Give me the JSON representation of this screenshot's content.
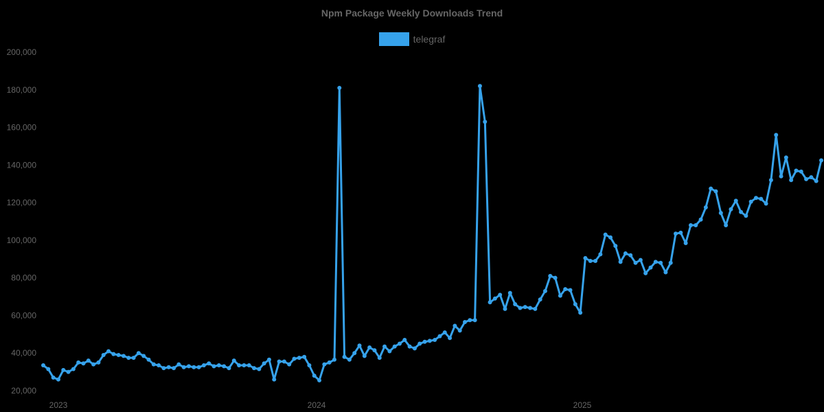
{
  "chart_data": {
    "type": "line",
    "title": "Npm Package Weekly Downloads Trend",
    "xlabel": "",
    "ylabel": "",
    "ylim": [
      20000,
      200000
    ],
    "grid": false,
    "legend_position": "top",
    "y_ticks": [
      "20,000",
      "40,000",
      "60,000",
      "80,000",
      "100,000",
      "120,000",
      "140,000",
      "160,000",
      "180,000",
      "200,000"
    ],
    "x_tick_labels": [
      "2023",
      "2024",
      "2025"
    ],
    "series": [
      {
        "name": "telegraf",
        "color": "#36a2eb",
        "values": [
          33500,
          31500,
          27000,
          26000,
          31000,
          30000,
          31500,
          35000,
          34500,
          36000,
          34000,
          35000,
          39000,
          41000,
          39500,
          39000,
          38500,
          37500,
          37500,
          40000,
          38500,
          36500,
          34000,
          33500,
          32000,
          32500,
          32000,
          34000,
          32500,
          33000,
          32500,
          32500,
          33500,
          34500,
          33000,
          33500,
          33000,
          32000,
          36000,
          33500,
          33500,
          33500,
          32000,
          31500,
          34500,
          36500,
          26000,
          35500,
          35500,
          34000,
          37000,
          37500,
          38000,
          33500,
          28000,
          25500,
          34000,
          35000,
          36500,
          181000,
          38000,
          36500,
          40000,
          44000,
          38500,
          43000,
          41500,
          37500,
          43500,
          41000,
          43500,
          45000,
          47000,
          43500,
          42500,
          45000,
          46000,
          46500,
          47000,
          49000,
          51000,
          48000,
          54500,
          52000,
          56500,
          57500,
          57500,
          182000,
          163000,
          67000,
          69000,
          71000,
          63500,
          72000,
          66000,
          64000,
          64500,
          64000,
          63500,
          68500,
          73000,
          81000,
          80000,
          70500,
          74000,
          73500,
          66000,
          61500,
          90500,
          89000,
          89000,
          92500,
          103000,
          101500,
          97000,
          88500,
          93000,
          92000,
          88000,
          89500,
          82500,
          85500,
          88500,
          88000,
          83000,
          88000,
          103500,
          104000,
          98500,
          108000,
          108000,
          111000,
          117500,
          127500,
          126000,
          114500,
          108000,
          116500,
          121000,
          115000,
          113000,
          120500,
          122500,
          122000,
          119500,
          132000,
          156000,
          134000,
          144000,
          132000,
          137000,
          136500,
          132500,
          133500,
          131500,
          142500
        ]
      }
    ]
  }
}
